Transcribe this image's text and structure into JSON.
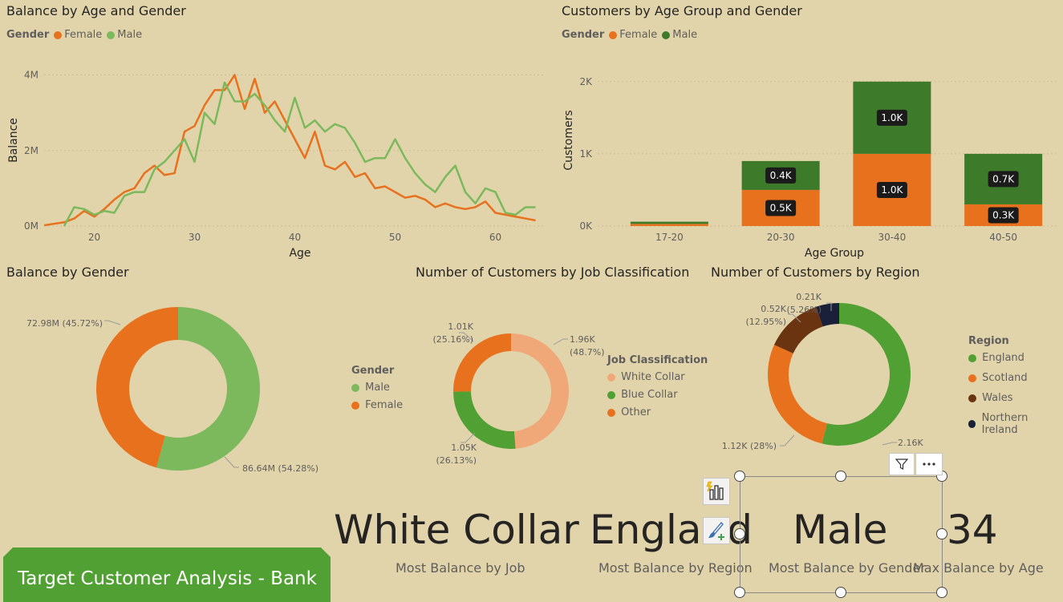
{
  "line_chart": {
    "title": "Balance by Age and Gender",
    "legend_title": "Gender",
    "legend": [
      {
        "label": "Female",
        "color": "#e8711e"
      },
      {
        "label": "Male",
        "color": "#7cb95c"
      }
    ],
    "xlabel": "Age",
    "ylabel": "Balance",
    "xticks": [
      "20",
      "30",
      "40",
      "50",
      "60"
    ],
    "yticks": [
      "0M",
      "2M",
      "4M"
    ]
  },
  "bar_chart": {
    "title": "Customers by Age Group and Gender",
    "legend_title": "Gender",
    "legend": [
      {
        "label": "Female",
        "color": "#e8711e"
      },
      {
        "label": "Male",
        "color": "#3d7a2a"
      }
    ],
    "xlabel": "Age Group",
    "ylabel": "Customers",
    "yticks": [
      "0K",
      "1K",
      "2K"
    ]
  },
  "donut_gender": {
    "title": "Balance by Gender",
    "legend_title": "Gender",
    "legend": [
      {
        "label": "Male",
        "color": "#7cb95c"
      },
      {
        "label": "Female",
        "color": "#e8711e"
      }
    ],
    "labels": [
      "86.64M (54.28%)",
      "72.98M (45.72%)"
    ]
  },
  "donut_job": {
    "title": "Number of Customers by Job Classification",
    "legend_title": "Job Classification",
    "legend": [
      {
        "label": "White Collar",
        "color": "#f0a878"
      },
      {
        "label": "Blue Collar",
        "color": "#51a033"
      },
      {
        "label": "Other",
        "color": "#e8711e"
      }
    ],
    "labels": {
      "white_1": "1.96K",
      "white_2": "(48.7%)",
      "blue_1": "1.05K",
      "blue_2": "(26.13%)",
      "other_1": "1.01K",
      "other_2": "(25.16%)"
    }
  },
  "donut_region": {
    "title": "Number of Customers by Region",
    "legend_title": "Region",
    "legend": [
      {
        "label": "England",
        "color": "#51a033"
      },
      {
        "label": "Scotland",
        "color": "#e8711e"
      },
      {
        "label": "Wales",
        "color": "#6b3410"
      },
      {
        "label": "Northern Ireland",
        "color": "#1a1f3a"
      }
    ],
    "labels": {
      "eng": "2.16K",
      "sco": "1.12K (28%)",
      "wal_1": "0.52K",
      "wal_2": "(12.95%)",
      "ni_1": "0.21K",
      "ni_2": "(5.26%)"
    }
  },
  "kpis": [
    {
      "value": "White Collar",
      "label": "Most Balance by Job"
    },
    {
      "value": "England",
      "label": "Most Balance by Region"
    },
    {
      "value": "Male",
      "label": "Most Balance by Gender"
    },
    {
      "value": "34",
      "label": "Max Balance by Age"
    }
  ],
  "banner": {
    "text": "Target Customer Analysis - Bank"
  },
  "colors": {
    "background": "#e1d4aa",
    "female": "#e8711e",
    "male_light": "#7cb95c",
    "male_dark": "#3d7a2a",
    "banner": "#51a033"
  },
  "icons": [
    "filter-icon",
    "more-options-icon",
    "analytics-icon",
    "format-brush-icon"
  ],
  "chart_data": [
    {
      "type": "line",
      "title": "Balance by Age and Gender",
      "xlabel": "Age",
      "ylabel": "Balance",
      "xlim": [
        15,
        65
      ],
      "ylim": [
        0,
        4500000
      ],
      "series": [
        {
          "name": "Female",
          "color": "#e8711e",
          "x": [
            15,
            17,
            18,
            19,
            20,
            21,
            22,
            23,
            24,
            25,
            26,
            27,
            28,
            29,
            30,
            31,
            32,
            33,
            34,
            35,
            36,
            37,
            38,
            39,
            40,
            41,
            42,
            43,
            44,
            45,
            46,
            47,
            48,
            49,
            50,
            51,
            52,
            53,
            54,
            55,
            56,
            57,
            58,
            59,
            60,
            61,
            62,
            63,
            64
          ],
          "y": [
            20000,
            100000,
            200000,
            400000,
            250000,
            450000,
            700000,
            900000,
            1000000,
            1400000,
            1600000,
            1350000,
            1400000,
            2500000,
            2650000,
            3200000,
            3600000,
            3600000,
            4000000,
            3100000,
            3900000,
            3000000,
            3300000,
            2800000,
            2300000,
            1800000,
            2500000,
            1600000,
            1500000,
            1700000,
            1300000,
            1400000,
            1000000,
            1050000,
            900000,
            750000,
            800000,
            700000,
            500000,
            600000,
            500000,
            450000,
            500000,
            650000,
            350000,
            300000,
            250000,
            200000,
            150000
          ]
        },
        {
          "name": "Male",
          "color": "#7cb95c",
          "x": [
            17,
            18,
            19,
            20,
            21,
            22,
            23,
            24,
            25,
            26,
            27,
            28,
            29,
            30,
            31,
            32,
            33,
            34,
            35,
            36,
            37,
            38,
            39,
            40,
            41,
            42,
            43,
            44,
            45,
            46,
            47,
            48,
            49,
            50,
            51,
            52,
            53,
            54,
            55,
            56,
            57,
            58,
            59,
            60,
            61,
            62,
            63,
            64
          ],
          "y": [
            0,
            500000,
            450000,
            300000,
            400000,
            350000,
            800000,
            900000,
            900000,
            1500000,
            1700000,
            2000000,
            2300000,
            1700000,
            3000000,
            2700000,
            3800000,
            3300000,
            3300000,
            3500000,
            3200000,
            2800000,
            2500000,
            3400000,
            2600000,
            2800000,
            2500000,
            2700000,
            2600000,
            2200000,
            1700000,
            1800000,
            1800000,
            2300000,
            1800000,
            1400000,
            1100000,
            900000,
            1300000,
            1600000,
            900000,
            600000,
            1000000,
            900000,
            350000,
            300000,
            500000,
            500000
          ]
        }
      ]
    },
    {
      "type": "bar",
      "title": "Customers by Age Group and Gender",
      "xlabel": "Age Group",
      "ylabel": "Customers",
      "categories": [
        "17-20",
        "20-30",
        "30-40",
        "40-50"
      ],
      "ylim": [
        0,
        2000
      ],
      "series": [
        {
          "name": "Female",
          "color": "#e8711e",
          "values": [
            30,
            500,
            1000,
            300
          ],
          "labels": [
            "",
            "0.5K",
            "1.0K",
            "0.3K"
          ]
        },
        {
          "name": "Male",
          "color": "#3d7a2a",
          "values": [
            30,
            400,
            1000,
            700
          ],
          "labels": [
            "",
            "0.4K",
            "1.0K",
            "0.7K"
          ]
        }
      ]
    },
    {
      "type": "pie",
      "title": "Balance by Gender",
      "categories": [
        "Male",
        "Female"
      ],
      "values": [
        86.64,
        72.98
      ],
      "colors": [
        "#7cb95c",
        "#e8711e"
      ]
    },
    {
      "type": "pie",
      "title": "Number of Customers by Job Classification",
      "categories": [
        "White Collar",
        "Blue Collar",
        "Other"
      ],
      "values": [
        1.96,
        1.05,
        1.01
      ],
      "colors": [
        "#f0a878",
        "#51a033",
        "#e8711e"
      ]
    },
    {
      "type": "pie",
      "title": "Number of Customers by Region",
      "categories": [
        "England",
        "Scotland",
        "Wales",
        "Northern Ireland"
      ],
      "values": [
        2.16,
        1.12,
        0.52,
        0.21
      ],
      "colors": [
        "#51a033",
        "#e8711e",
        "#6b3410",
        "#1a1f3a"
      ]
    }
  ]
}
